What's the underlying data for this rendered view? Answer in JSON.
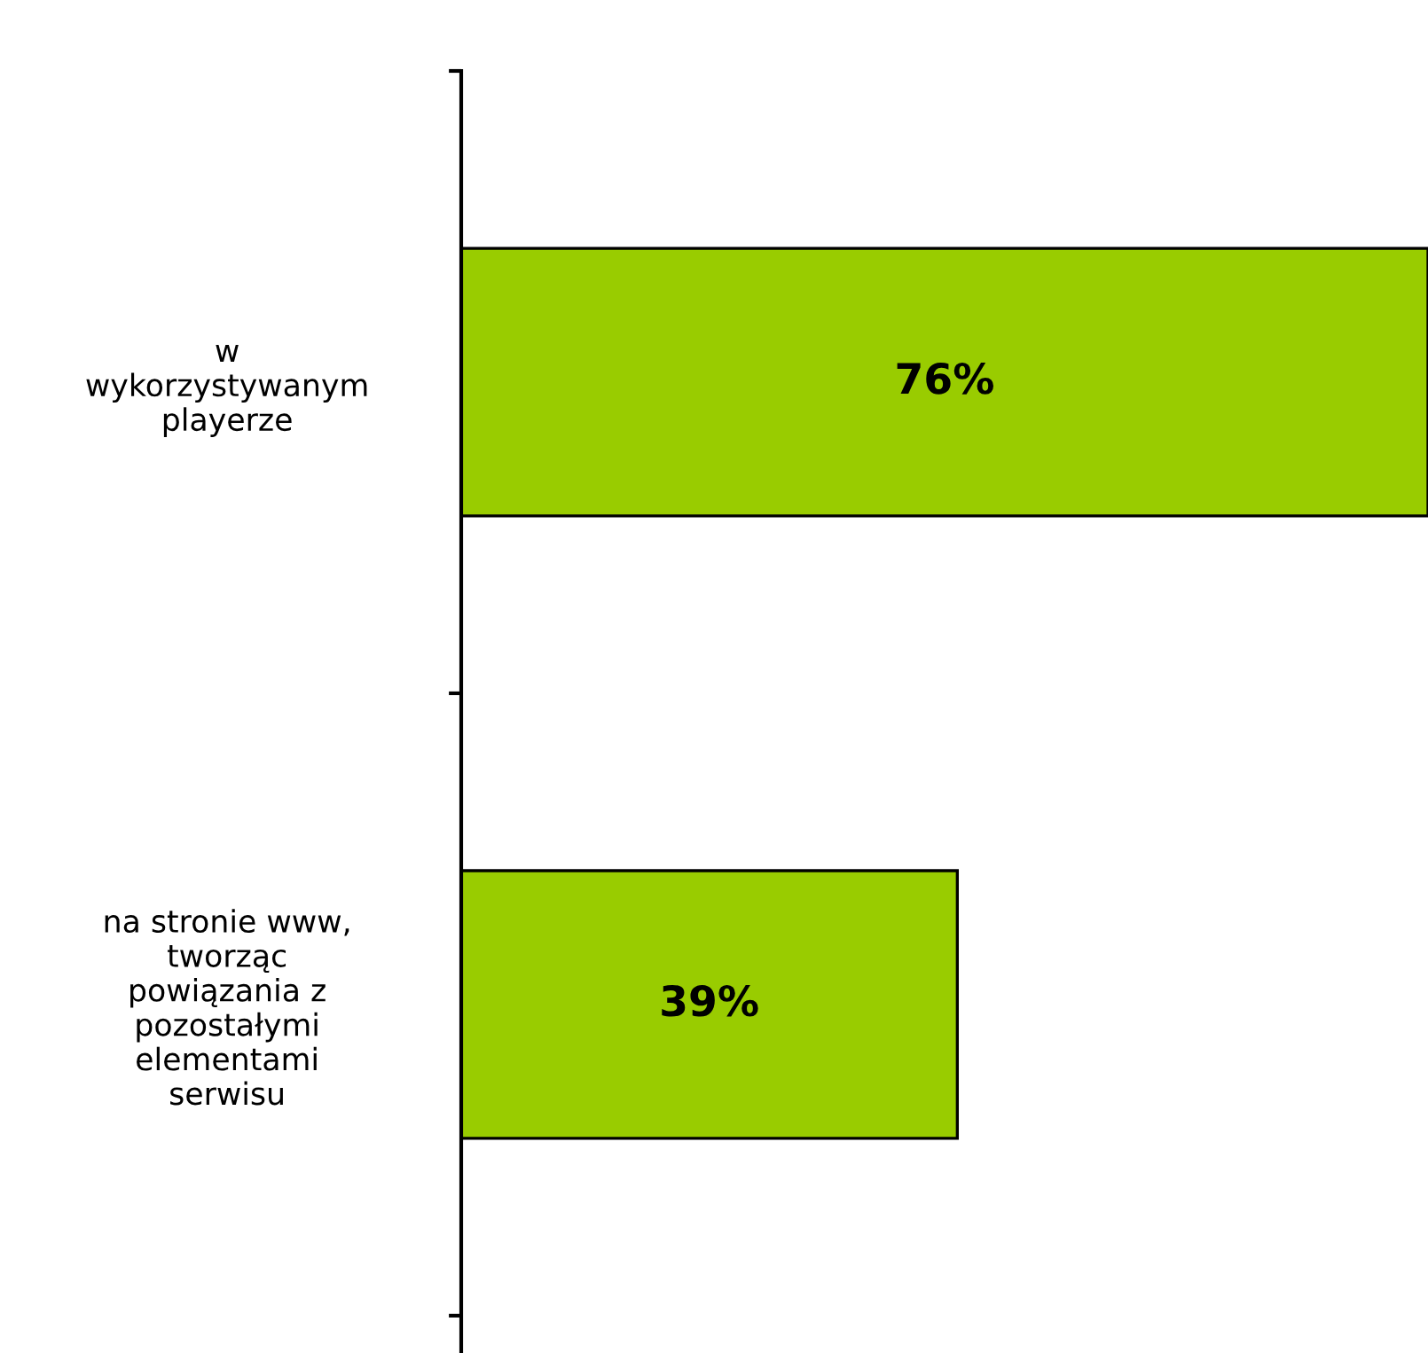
{
  "chart_data": {
    "type": "bar",
    "orientation": "horizontal",
    "categories": [
      "w\nwykorzystywanym\nplayerze",
      "na stronie www,\ntworząc\npowiązania z\npozostałymi\nelementami\nserwisu"
    ],
    "values": [
      76,
      39
    ],
    "value_labels": [
      "76%",
      "39%"
    ],
    "color": "#99cc00"
  }
}
